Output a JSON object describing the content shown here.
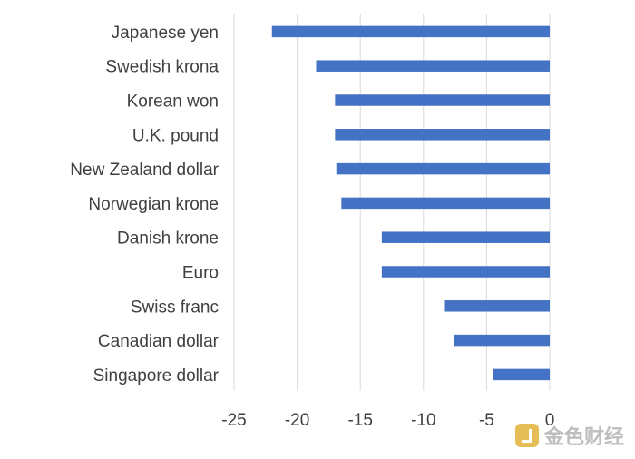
{
  "chart_data": {
    "type": "bar",
    "orientation": "horizontal",
    "categories": [
      "Japanese yen",
      "Swedish krona",
      "Korean won",
      "U.K. pound",
      "New Zealand dollar",
      "Norwegian krone",
      "Danish krone",
      "Euro",
      "Swiss franc",
      "Canadian dollar",
      "Singapore dollar"
    ],
    "values": [
      -22,
      -18.5,
      -17,
      -17,
      -16.9,
      -16.5,
      -13.3,
      -13.3,
      -8.3,
      -7.6,
      -4.5
    ],
    "xlim": [
      -25,
      0
    ],
    "xticks": [
      -25,
      -20,
      -15,
      -10,
      -5,
      0
    ],
    "tick_labels": [
      "-25",
      "-20",
      "-15",
      "-10",
      "-5",
      "0"
    ],
    "grid": true,
    "bar_color": "#4472c4",
    "title": "",
    "xlabel": "",
    "ylabel": ""
  },
  "watermark": {
    "text": "金色财经",
    "logo_icon": "jinse-logo-icon"
  }
}
